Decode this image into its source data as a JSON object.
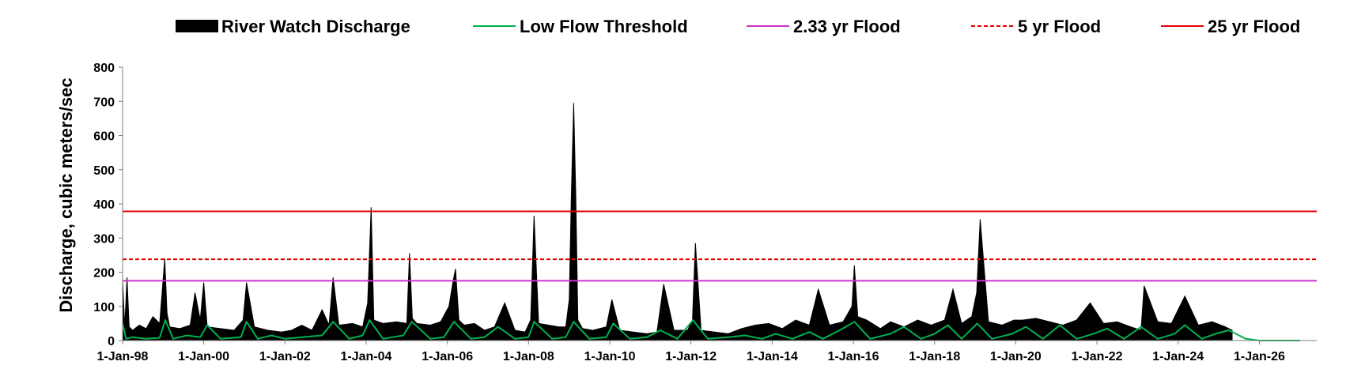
{
  "chart_data": {
    "type": "area",
    "title": "",
    "xlabel": "",
    "ylabel": "Discharge, cubic meters/sec",
    "ylim": [
      0,
      800
    ],
    "xlim": [
      "1998-01-01",
      "2027-06-01"
    ],
    "grid": false,
    "legend_position": "top",
    "y_ticks": [
      "0",
      "100",
      "200",
      "300",
      "400",
      "500",
      "600",
      "700",
      "800"
    ],
    "x_ticks": [
      "1-Jan-98",
      "1-Jan-00",
      "1-Jan-02",
      "1-Jan-04",
      "1-Jan-06",
      "1-Jan-08",
      "1-Jan-10",
      "1-Jan-12",
      "1-Jan-14",
      "1-Jan-16",
      "1-Jan-18",
      "1-Jan-20",
      "1-Jan-22",
      "1-Jan-24",
      "1-Jan-26"
    ],
    "x_tick_dates": [
      "1998-01-01",
      "2000-01-01",
      "2002-01-01",
      "2004-01-01",
      "2006-01-01",
      "2008-01-01",
      "2010-01-01",
      "2012-01-01",
      "2014-01-01",
      "2016-01-01",
      "2018-01-01",
      "2020-01-01",
      "2022-01-01",
      "2024-01-01",
      "2026-01-01"
    ],
    "legend": [
      {
        "name": "River Watch Discharge",
        "style": "filled",
        "color": "#000000"
      },
      {
        "name": "Low Flow Threshold",
        "style": "solid",
        "color": "#00b050"
      },
      {
        "name": "2.33 yr Flood",
        "style": "solid",
        "color": "#cc33cc"
      },
      {
        "name": "5 yr Flood",
        "style": "dashed",
        "color": "#e00000"
      },
      {
        "name": "25 yr Flood",
        "style": "solid",
        "color": "#e00000"
      }
    ],
    "series": [
      {
        "name": "River Watch Discharge",
        "type": "area",
        "color": "#000000",
        "x": [
          "1998-01-01",
          "1998-01-20",
          "1998-02-10",
          "1998-03-01",
          "1998-04-01",
          "1998-06-01",
          "1998-08-01",
          "1998-10-01",
          "1998-12-01",
          "1999-01-15",
          "1999-02-05",
          "1999-03-01",
          "1999-06-01",
          "1999-09-01",
          "1999-10-15",
          "1999-12-01",
          "2000-01-01",
          "2000-02-01",
          "2000-06-01",
          "2000-10-01",
          "2000-12-20",
          "2001-01-20",
          "2001-04-01",
          "2001-08-01",
          "2001-12-01",
          "2002-03-01",
          "2002-06-01",
          "2002-09-01",
          "2002-12-01",
          "2003-02-01",
          "2003-03-10",
          "2003-05-01",
          "2003-09-01",
          "2003-12-01",
          "2004-01-15",
          "2004-02-15",
          "2004-03-10",
          "2004-06-01",
          "2004-10-01",
          "2005-01-01",
          "2005-01-25",
          "2005-02-20",
          "2005-04-01",
          "2005-08-01",
          "2005-11-01",
          "2006-01-15",
          "2006-02-25",
          "2006-03-15",
          "2006-04-15",
          "2006-06-01",
          "2006-09-01",
          "2006-12-01",
          "2007-03-01",
          "2007-06-01",
          "2007-09-01",
          "2007-12-01",
          "2008-01-20",
          "2008-02-20",
          "2008-04-01",
          "2008-07-01",
          "2008-10-01",
          "2008-12-01",
          "2009-01-01",
          "2009-01-20",
          "2009-02-10",
          "2009-03-01",
          "2009-03-20",
          "2009-05-01",
          "2009-08-01",
          "2009-12-01",
          "2010-01-20",
          "2010-04-01",
          "2010-08-01",
          "2010-12-01",
          "2011-03-01",
          "2011-05-01",
          "2011-08-01",
          "2011-12-01",
          "2012-01-15",
          "2012-02-10",
          "2012-04-01",
          "2012-08-01",
          "2012-12-01",
          "2013-04-01",
          "2013-08-01",
          "2013-12-01",
          "2014-04-01",
          "2014-08-01",
          "2014-12-01",
          "2015-02-20",
          "2015-06-01",
          "2015-10-01",
          "2015-12-20",
          "2016-01-10",
          "2016-02-10",
          "2016-05-01",
          "2016-09-01",
          "2016-12-01",
          "2017-04-01",
          "2017-08-01",
          "2017-12-01",
          "2018-04-01",
          "2018-06-15",
          "2018-09-01",
          "2018-12-01",
          "2019-01-15",
          "2019-02-15",
          "2019-05-01",
          "2019-09-01",
          "2019-12-15",
          "2020-03-01",
          "2020-07-01",
          "2020-11-01",
          "2021-03-01",
          "2021-07-01",
          "2021-11-01",
          "2022-03-01",
          "2022-07-01",
          "2022-11-01",
          "2023-02-01",
          "2023-03-01",
          "2023-07-01",
          "2023-11-01",
          "2024-03-01",
          "2024-07-01",
          "2024-11-01",
          "2025-03-01",
          "2025-05-01"
        ],
        "values": [
          180,
          40,
          185,
          40,
          30,
          45,
          35,
          70,
          50,
          240,
          80,
          40,
          35,
          45,
          140,
          60,
          170,
          40,
          35,
          30,
          60,
          170,
          40,
          30,
          25,
          30,
          45,
          30,
          90,
          45,
          185,
          45,
          50,
          40,
          110,
          390,
          60,
          50,
          55,
          50,
          255,
          65,
          50,
          45,
          55,
          100,
          180,
          210,
          60,
          45,
          50,
          30,
          40,
          110,
          30,
          25,
          60,
          365,
          50,
          45,
          40,
          40,
          120,
          420,
          695,
          430,
          60,
          35,
          30,
          40,
          120,
          30,
          25,
          20,
          25,
          165,
          30,
          30,
          60,
          285,
          30,
          25,
          20,
          35,
          45,
          50,
          35,
          60,
          45,
          150,
          45,
          55,
          100,
          220,
          70,
          60,
          35,
          55,
          40,
          60,
          45,
          60,
          150,
          50,
          70,
          140,
          355,
          55,
          45,
          60,
          60,
          65,
          55,
          45,
          60,
          110,
          50,
          55,
          40,
          30,
          160,
          55,
          50,
          130,
          45,
          55,
          40,
          30
        ]
      },
      {
        "name": "Low Flow Threshold",
        "type": "line",
        "color": "#00b050",
        "x": [
          "1998-01-01",
          "1998-02-01",
          "1998-04-01",
          "1998-08-01",
          "1998-12-01",
          "1999-01-20",
          "1999-04-01",
          "1999-08-01",
          "1999-12-01",
          "2000-02-01",
          "2000-06-01",
          "2000-12-01",
          "2001-01-20",
          "2001-05-01",
          "2001-09-01",
          "2002-01-01",
          "2002-06-01",
          "2002-12-01",
          "2003-03-10",
          "2003-08-01",
          "2003-12-01",
          "2004-02-01",
          "2004-06-01",
          "2004-12-01",
          "2005-02-15",
          "2005-08-01",
          "2005-12-01",
          "2006-03-01",
          "2006-08-01",
          "2006-12-01",
          "2007-04-01",
          "2007-09-01",
          "2008-01-01",
          "2008-02-20",
          "2008-08-01",
          "2008-12-01",
          "2009-02-10",
          "2009-07-01",
          "2009-12-01",
          "2010-02-01",
          "2010-07-01",
          "2010-12-01",
          "2011-04-01",
          "2011-09-01",
          "2012-01-20",
          "2012-06-01",
          "2012-12-01",
          "2013-05-01",
          "2013-10-01",
          "2014-02-01",
          "2014-07-01",
          "2014-12-01",
          "2015-04-01",
          "2015-09-01",
          "2016-01-10",
          "2016-06-01",
          "2016-12-01",
          "2017-04-01",
          "2017-09-01",
          "2018-01-01",
          "2018-05-01",
          "2018-09-01",
          "2019-01-20",
          "2019-06-01",
          "2019-12-01",
          "2020-04-01",
          "2020-09-01",
          "2021-02-01",
          "2021-07-01",
          "2021-12-01",
          "2022-04-01",
          "2022-09-01",
          "2023-02-01",
          "2023-07-01",
          "2023-12-01",
          "2024-03-01",
          "2024-08-01",
          "2024-12-01",
          "2025-04-01",
          "2025-09-01",
          "2026-01-01",
          "2026-12-31"
        ],
        "values": [
          50,
          5,
          10,
          5,
          8,
          60,
          5,
          15,
          10,
          45,
          5,
          10,
          55,
          5,
          15,
          5,
          10,
          15,
          55,
          5,
          15,
          60,
          5,
          15,
          55,
          5,
          10,
          55,
          5,
          10,
          40,
          5,
          10,
          55,
          5,
          10,
          55,
          5,
          10,
          50,
          5,
          10,
          30,
          5,
          60,
          5,
          10,
          15,
          5,
          20,
          5,
          25,
          5,
          30,
          55,
          5,
          20,
          40,
          5,
          20,
          45,
          5,
          50,
          5,
          20,
          40,
          5,
          45,
          5,
          20,
          35,
          5,
          40,
          5,
          20,
          45,
          5,
          20,
          30,
          5,
          0,
          0
        ]
      },
      {
        "name": "2.33 yr Flood",
        "type": "hline",
        "color": "#cc33cc",
        "values": [
          175
        ]
      },
      {
        "name": "5 yr Flood",
        "type": "hline",
        "color": "#e00000",
        "values": [
          238
        ]
      },
      {
        "name": "25 yr Flood",
        "type": "hline",
        "color": "#e00000",
        "values": [
          378
        ]
      }
    ]
  }
}
